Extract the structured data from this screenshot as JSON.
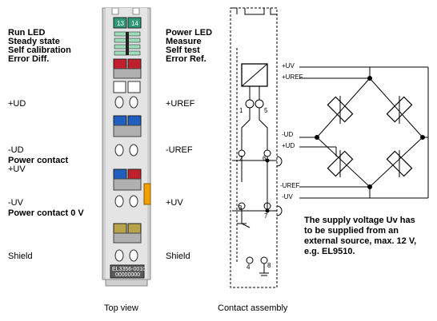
{
  "left_labels": {
    "run_led": "Run LED",
    "steady_state": "Steady state",
    "self_calibration": "Self calibration",
    "error_diff": "Error Diff.",
    "plus_ud": "+UD",
    "minus_ud": "-UD",
    "power_contact_plus": "Power contact",
    "plus_uv": "+UV",
    "minus_uv": "-UV",
    "power_contact_0v": "Power contact 0 V",
    "shield": "Shield"
  },
  "right_labels": {
    "power_led": "Power LED",
    "measure": "Measure",
    "self_test": "Self test",
    "error_ref": "Error Ref.",
    "plus_uref": "+UREF",
    "minus_uref": "-UREF",
    "plus_uv": "+UV",
    "shield": "Shield"
  },
  "terminal": {
    "led_labels": [
      "13",
      "14"
    ],
    "model": "EL3356-0010",
    "serial": "00000000"
  },
  "contact": {
    "pins": [
      "1",
      "5",
      "2",
      "6",
      "3",
      "7",
      "4",
      "8"
    ]
  },
  "bridge_labels": {
    "plus_uv": "+UV",
    "plus_uref": "+UREF",
    "minus_ud": "-UD",
    "plus_ud": "+UD",
    "minus_uref": "-UREF",
    "minus_uv": "-UV"
  },
  "note": "The supply voltage Uv has to be supplied from an external source, max. 12 V, e.g. EL9510.",
  "captions": {
    "top_view": "Top view",
    "contact_assembly": "Contact assembly"
  },
  "colors": {
    "led_green": "#2e9a7a",
    "led_red": "#c0202a",
    "block_blue": "#1f5fbf",
    "block_olive": "#b8a24a",
    "power_orange": "#f0a000",
    "terminal_gray": "#c8c8c8"
  }
}
